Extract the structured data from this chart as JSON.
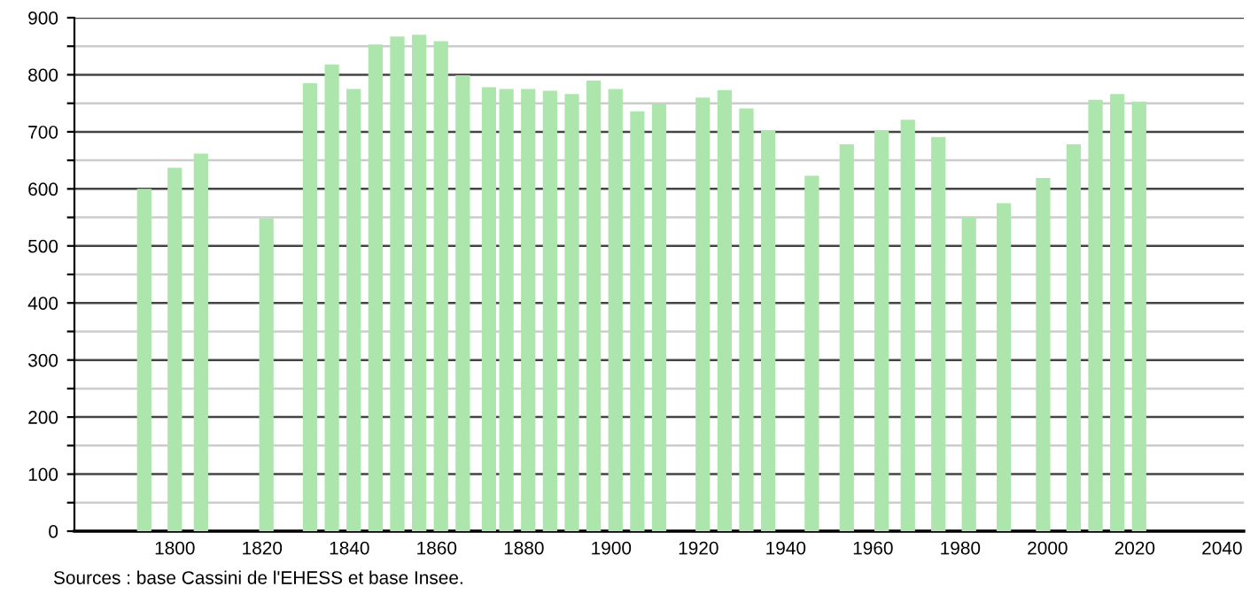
{
  "chart_data": {
    "type": "bar",
    "color": "#ade6ad",
    "x": [
      1793,
      1800,
      1806,
      1821,
      1831,
      1836,
      1841,
      1846,
      1851,
      1856,
      1861,
      1866,
      1872,
      1876,
      1881,
      1886,
      1891,
      1896,
      1901,
      1906,
      1911,
      1921,
      1926,
      1931,
      1936,
      1946,
      1954,
      1962,
      1968,
      1975,
      1982,
      1990,
      1999,
      2006,
      2011,
      2016,
      2021
    ],
    "values": [
      600,
      637,
      662,
      548,
      785,
      818,
      775,
      853,
      867,
      870,
      859,
      799,
      778,
      775,
      775,
      772,
      766,
      790,
      775,
      736,
      748,
      760,
      773,
      741,
      703,
      623,
      678,
      703,
      721,
      691,
      550,
      575,
      619,
      678,
      756,
      766,
      753
    ],
    "xlim": [
      1777,
      2045
    ],
    "xticks": [
      1800,
      1820,
      1840,
      1860,
      1880,
      1900,
      1920,
      1940,
      1960,
      1980,
      2000,
      2020,
      2040
    ],
    "ylim": [
      0,
      900
    ],
    "yticks": [
      0,
      {
        "value": 50,
        "label": null
      },
      100,
      {
        "value": 150,
        "label": null
      },
      200,
      {
        "value": 250,
        "label": null
      },
      300,
      {
        "value": 350,
        "label": null
      },
      400,
      {
        "value": 450,
        "label": null
      },
      500,
      {
        "value": 550,
        "label": null
      },
      600,
      {
        "value": 650,
        "label": null
      },
      700,
      {
        "value": 750,
        "label": null
      },
      800,
      {
        "value": 850,
        "label": null
      },
      900
    ],
    "grid": "y",
    "annotations": [
      "Sources : base Cassini de l'EHESS et base Insee."
    ]
  }
}
